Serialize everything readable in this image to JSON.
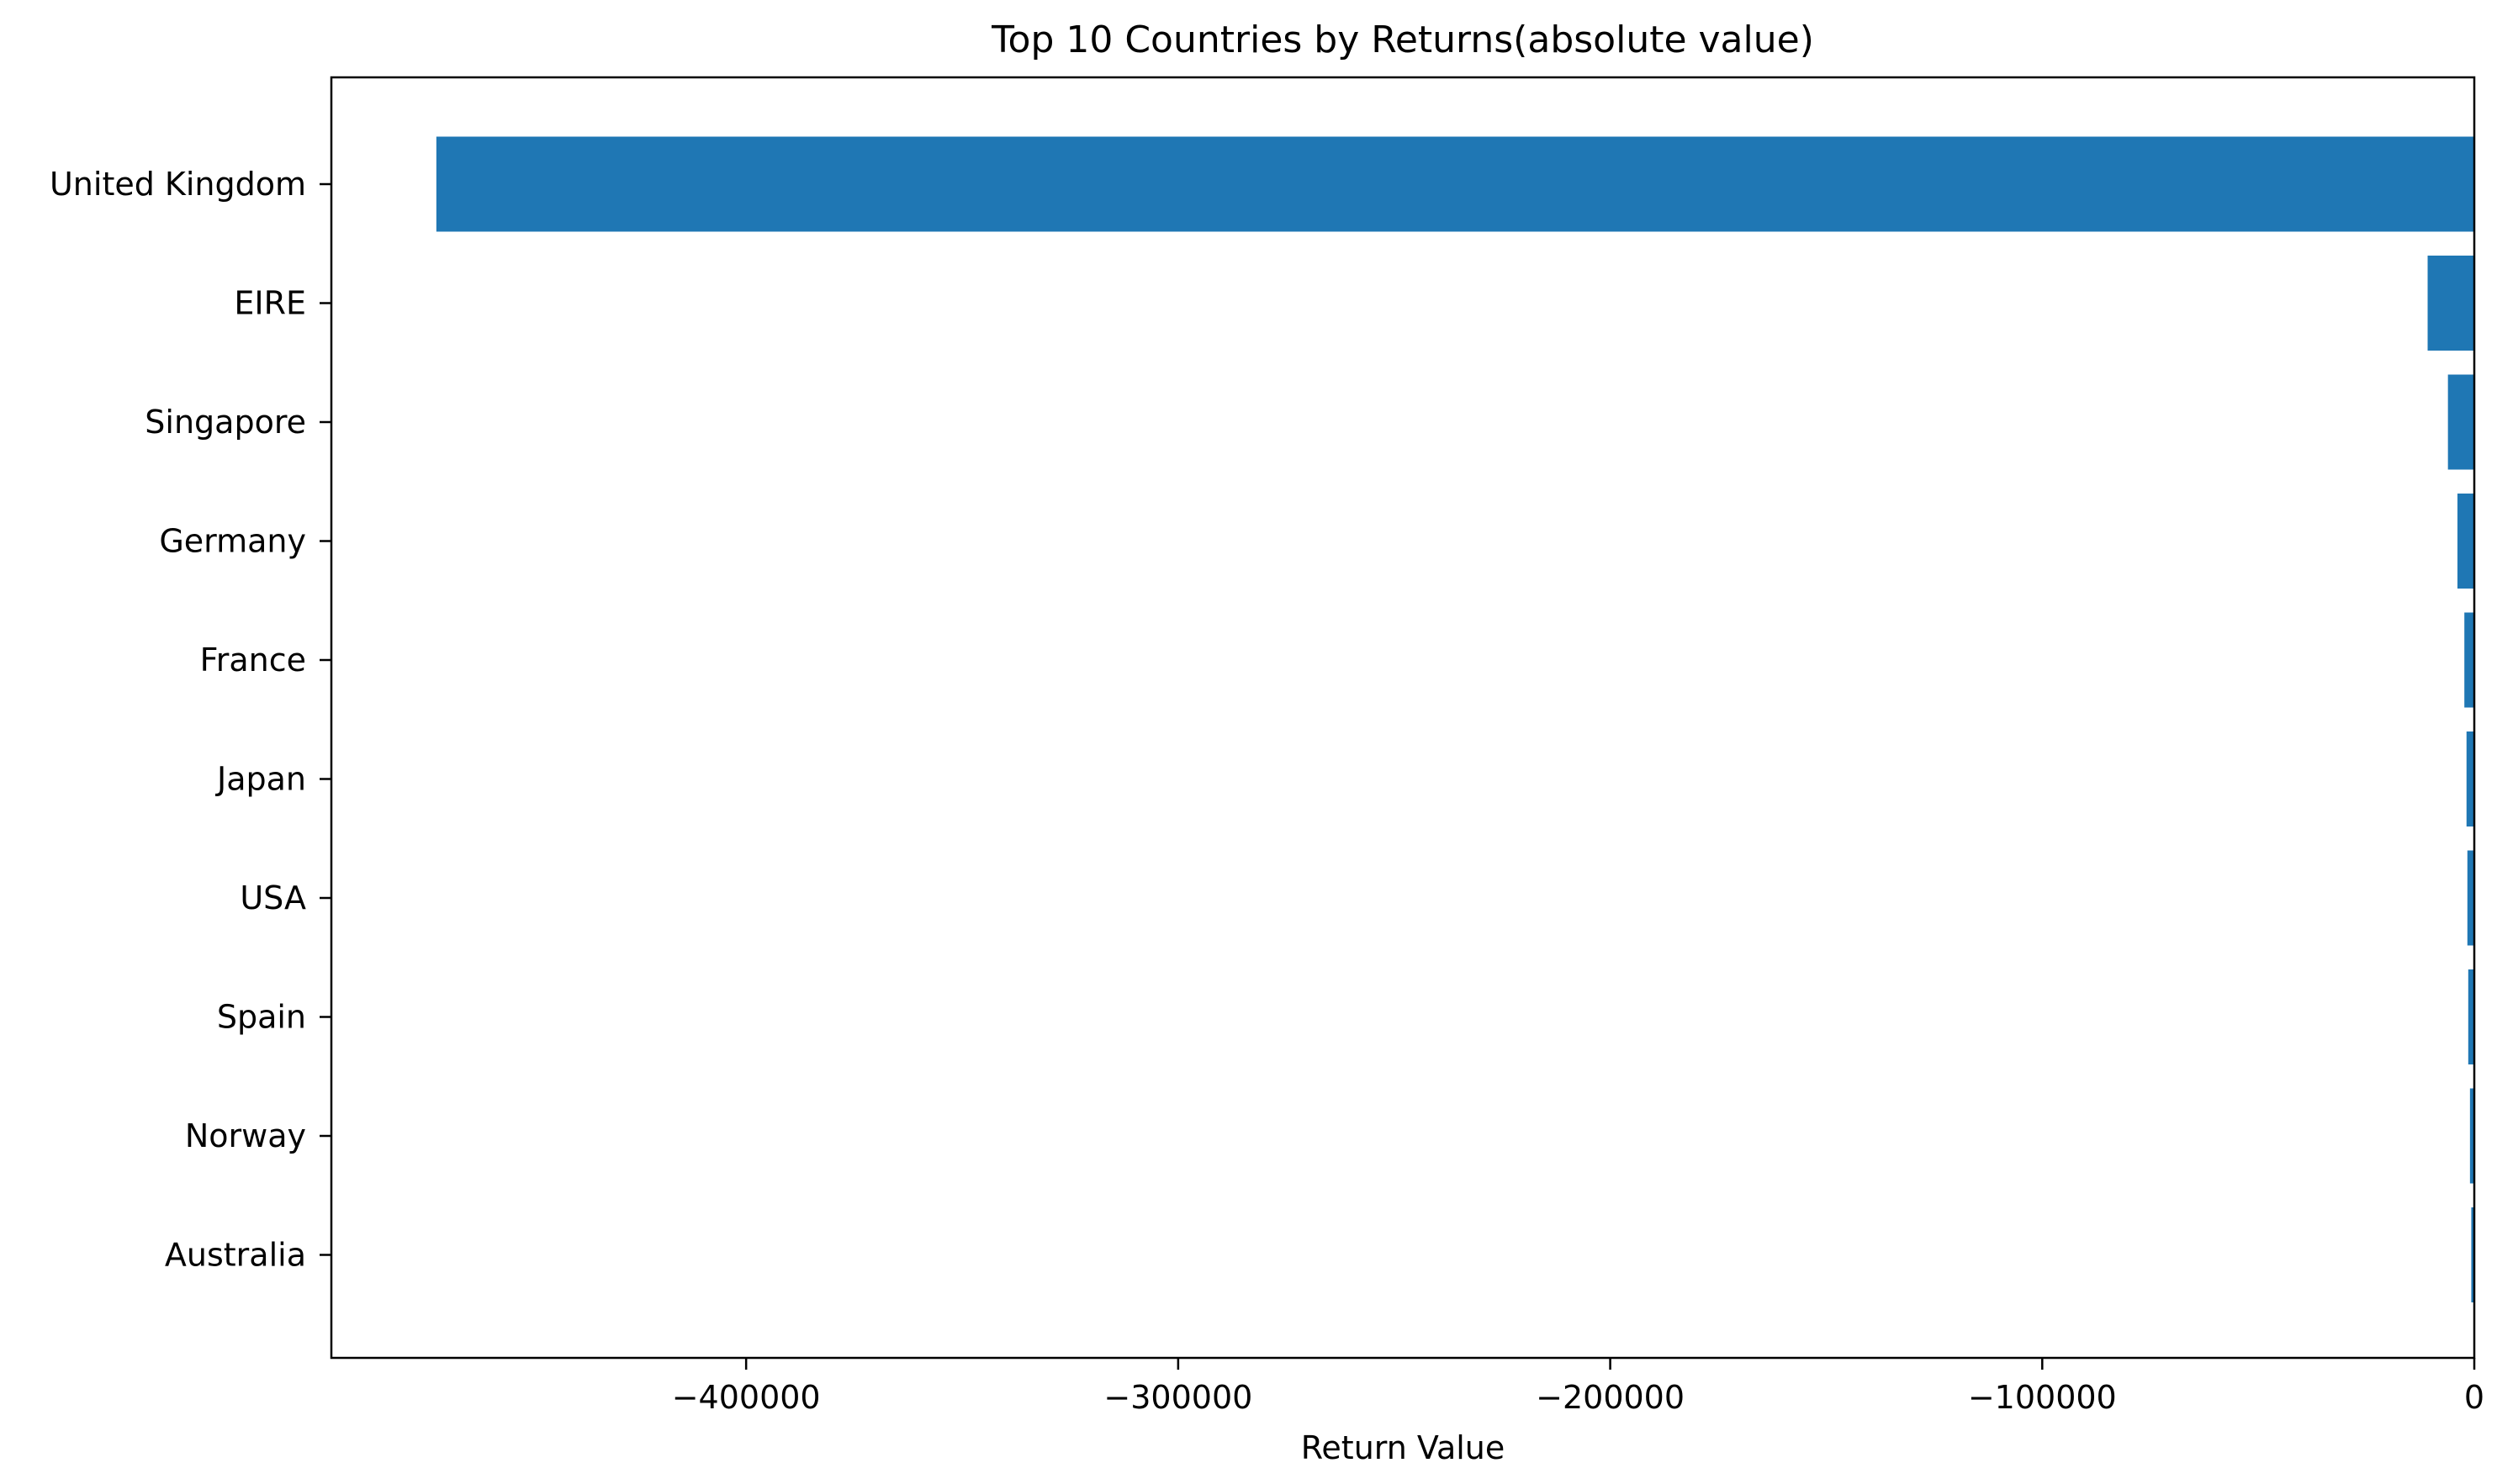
{
  "chart_data": {
    "type": "bar",
    "orientation": "horizontal",
    "title": "Top 10 Countries by Returns(absolute value)",
    "xlabel": "Return Value",
    "ylabel": "",
    "categories": [
      "United Kingdom",
      "EIRE",
      "Singapore",
      "Germany",
      "France",
      "Japan",
      "USA",
      "Spain",
      "Norway",
      "Australia"
    ],
    "values": [
      -471700,
      -10800,
      -6100,
      -3900,
      -2300,
      -1800,
      -1600,
      -1400,
      -1000,
      -700
    ],
    "xlim": [
      -496000,
      0
    ],
    "xticks": [
      -400000,
      -300000,
      -200000,
      -100000,
      0
    ],
    "xtick_labels": [
      "−400000",
      "−300000",
      "−200000",
      "−100000",
      "0"
    ],
    "bar_color": "#1f77b4",
    "grid": false,
    "legend": "none"
  }
}
